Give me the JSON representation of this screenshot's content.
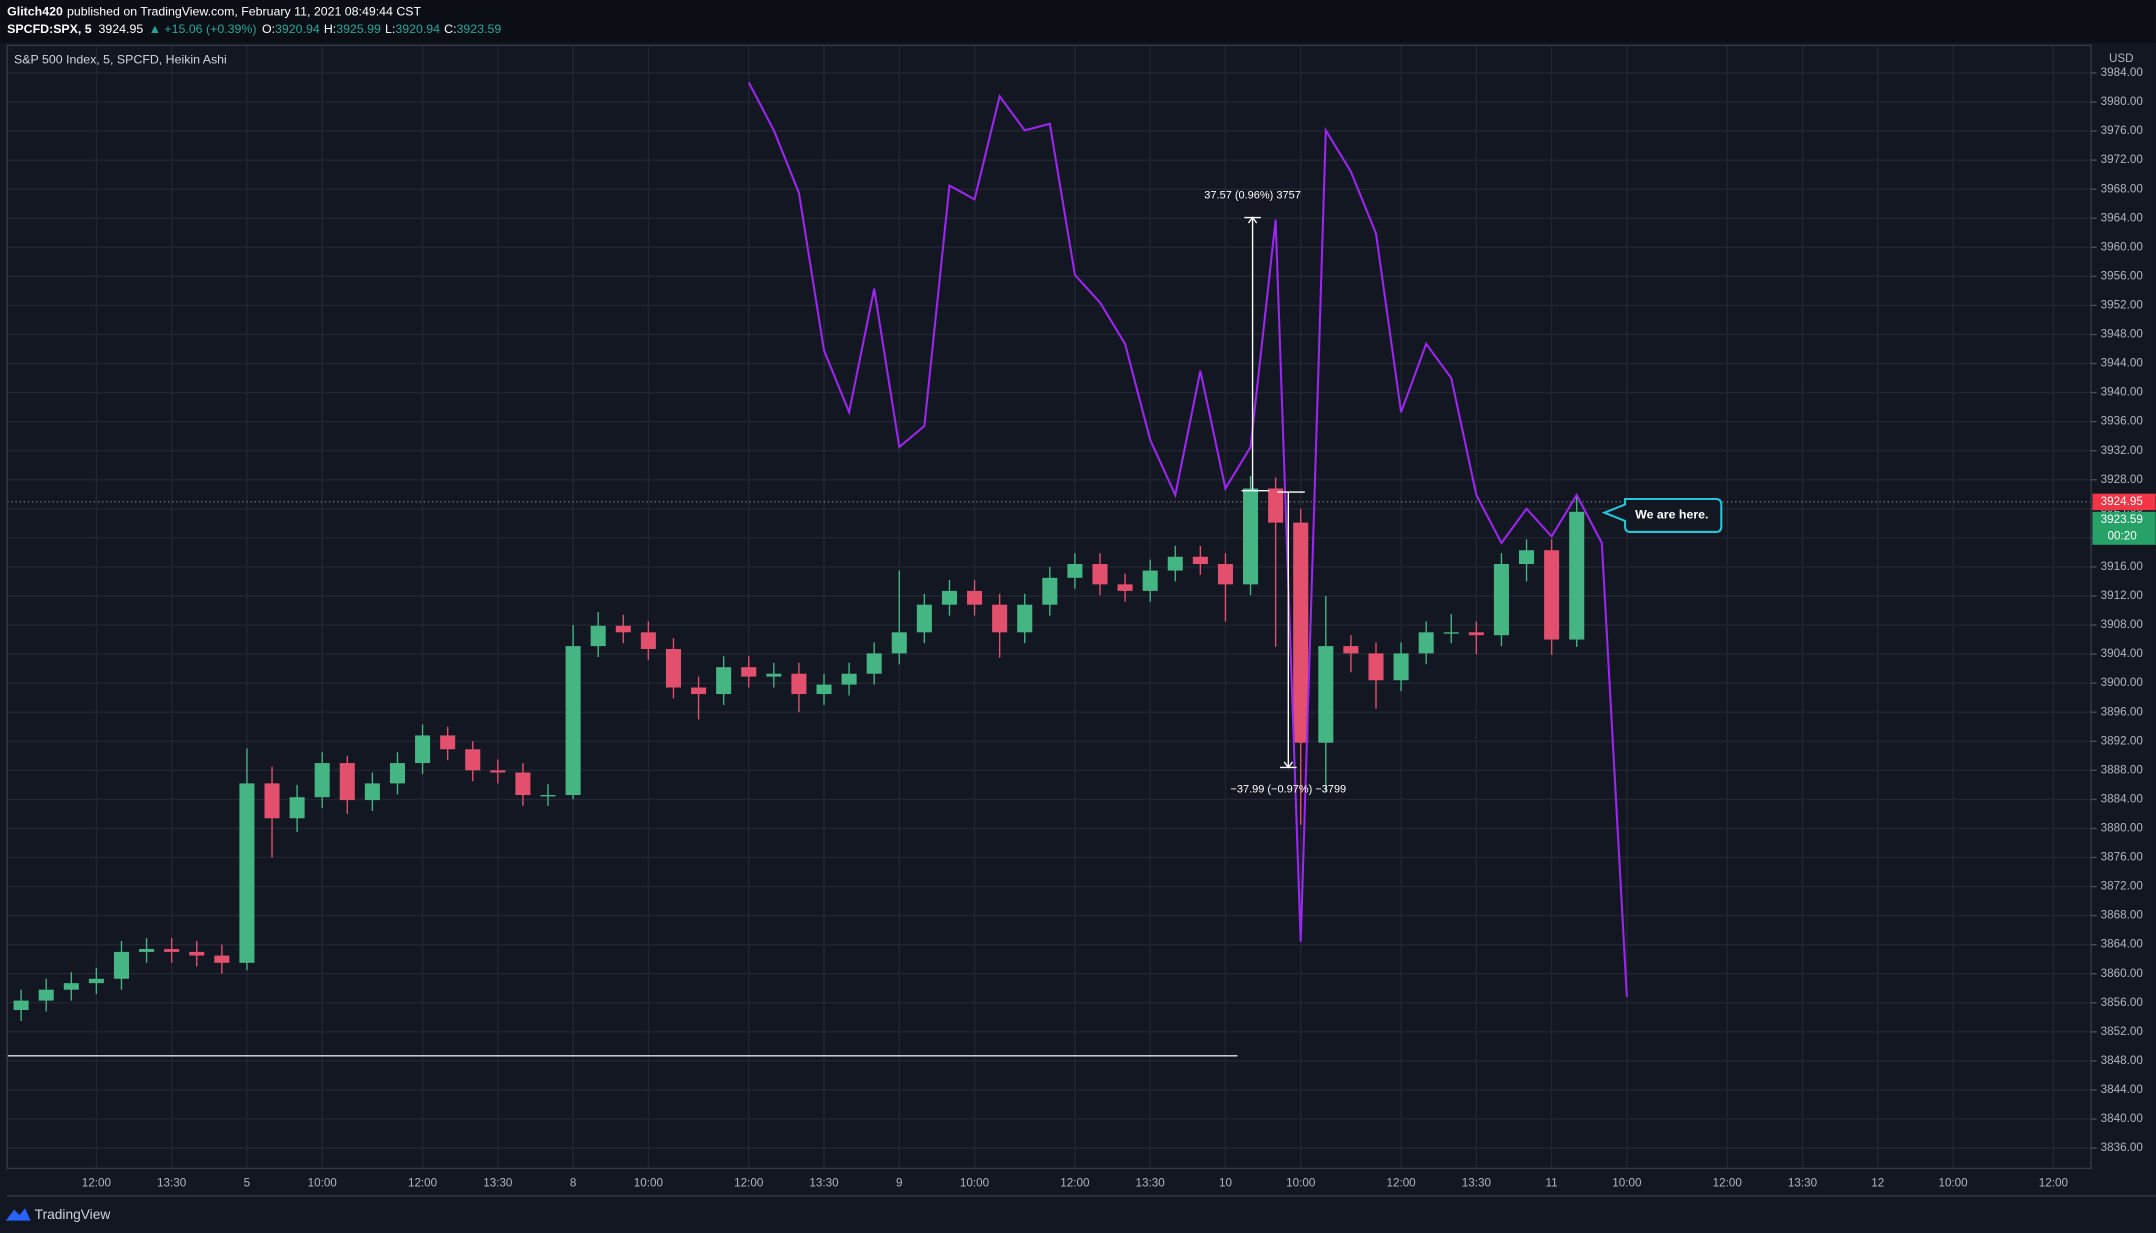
{
  "header": {
    "user": "Glitch420",
    "published": "published on TradingView.com, February 11, 2021 08:49:44 CST",
    "symbol": "SPCFD:SPX, 5",
    "price": 3924.95,
    "change": "▲ +15.06 (+0.39%)",
    "o_label": "O:",
    "open": 3920.94,
    "h_label": "H:",
    "l_label": "L:",
    "low": 3920.94,
    "c_label": "C:"
  },
  "chart_data": {
    "type": "candlestick",
    "title": "S&P 500 Index, 5, SPCFD, Heikin Ashi",
    "currency": "USD",
    "categories": [
      null,
      null,
      null,
      "12:00",
      null,
      null,
      "13:30",
      null,
      null,
      "5",
      null,
      null,
      "10:00",
      null,
      null,
      null,
      "12:00",
      null,
      null,
      "13:30",
      null,
      null,
      "8",
      null,
      null,
      "10:00",
      null,
      null,
      null,
      "12:00",
      null,
      null,
      "13:30",
      null,
      null,
      "9",
      null,
      null,
      "10:00",
      null,
      null,
      null,
      "12:00",
      null,
      null,
      "13:30",
      null,
      null,
      "10",
      null,
      null,
      "10:00",
      null,
      null,
      null,
      "12:00",
      null,
      null,
      "13:30",
      null,
      null,
      "11",
      null,
      null,
      "10:00",
      null,
      null,
      null,
      "12:00",
      null,
      null,
      "13:30",
      null,
      null,
      "12",
      null,
      null,
      "10:00",
      null,
      null,
      null,
      "12:00",
      null
    ],
    "open": [
      3855.0,
      3856.3,
      3857.8,
      3858.7,
      3859.3,
      3863.0,
      3863.4,
      3863.0,
      3862.5,
      3861.5,
      3886.2,
      3881.4,
      3884.3,
      3889.0,
      3883.9,
      3886.2,
      3889.0,
      3892.8,
      3890.9,
      3888.0,
      3887.7,
      3884.6,
      3884.6,
      3905.1,
      3907.9,
      3907.0,
      3904.7,
      3899.4,
      3898.5,
      3902.2,
      3900.9,
      3901.3,
      3898.5,
      3899.8,
      3901.3,
      3904.1,
      3907.0,
      3910.8,
      3912.7,
      3910.8,
      3907.0,
      3910.8,
      3914.5,
      3916.4,
      3913.6,
      3912.7,
      3915.5,
      3917.4,
      3916.4,
      3913.6,
      3926.8,
      3922.1,
      3891.8,
      3905.1,
      3904.1,
      3900.4,
      3904.1,
      3907.0,
      3907.0,
      3906.6,
      3916.4,
      3918.3,
      3906.0,
      null,
      null,
      null,
      null,
      null,
      null,
      null,
      null,
      null,
      null,
      null,
      null,
      null,
      null,
      null,
      null,
      null,
      null,
      null,
      null
    ],
    "high": [
      3857.8,
      3859.3,
      3860.2,
      3860.8,
      3864.5,
      3864.9,
      3864.9,
      3864.5,
      3864.0,
      3891.0,
      3888.5,
      3886.0,
      3890.5,
      3890.0,
      3887.7,
      3890.5,
      3894.3,
      3894.0,
      3892.0,
      3889.5,
      3889.0,
      3886.1,
      3908.0,
      3909.8,
      3909.4,
      3908.5,
      3906.2,
      3900.9,
      3903.7,
      3903.7,
      3902.8,
      3902.8,
      3901.3,
      3902.8,
      3905.6,
      3915.5,
      3912.3,
      3914.2,
      3914.2,
      3912.3,
      3912.3,
      3916.0,
      3917.9,
      3917.9,
      3915.1,
      3917.0,
      3918.9,
      3918.9,
      3917.9,
      3928.5,
      3928.3,
      3924.0,
      3912.0,
      3906.6,
      3905.6,
      3905.6,
      3908.5,
      3909.5,
      3908.5,
      3917.9,
      3919.8,
      3919.8,
      3925.99,
      null,
      null,
      null,
      null,
      null,
      null,
      null,
      null,
      null,
      null,
      null,
      null,
      null,
      null,
      null,
      null,
      null,
      null,
      null,
      null
    ],
    "low": [
      3853.5,
      3854.8,
      3856.3,
      3857.2,
      3857.8,
      3861.5,
      3861.5,
      3861.0,
      3860.0,
      3860.5,
      3876.0,
      3879.5,
      3882.8,
      3882.0,
      3882.4,
      3884.7,
      3887.5,
      3889.4,
      3886.5,
      3886.2,
      3883.1,
      3883.1,
      3884.0,
      3903.6,
      3905.5,
      3903.2,
      3897.9,
      3895.0,
      3897.0,
      3899.4,
      3899.4,
      3896.0,
      3897.0,
      3898.3,
      3899.8,
      3902.6,
      3905.5,
      3909.3,
      3909.3,
      3903.5,
      3905.5,
      3909.3,
      3913.0,
      3912.1,
      3911.2,
      3911.2,
      3914.0,
      3914.9,
      3908.5,
      3912.1,
      3905.0,
      3880.5,
      3885.0,
      3901.5,
      3896.5,
      3898.9,
      3902.6,
      3905.5,
      3904.0,
      3905.1,
      3914.0,
      3903.9,
      3905.0,
      null,
      null,
      null,
      null,
      null,
      null,
      null,
      null,
      null,
      null,
      null,
      null,
      null,
      null,
      null,
      null,
      null,
      null,
      null,
      null
    ],
    "close": [
      3856.3,
      3857.8,
      3858.7,
      3859.3,
      3863.0,
      3863.4,
      3863.0,
      3862.5,
      3861.5,
      3886.2,
      3881.4,
      3884.3,
      3889.0,
      3883.9,
      3886.2,
      3889.0,
      3892.8,
      3890.9,
      3888.0,
      3887.7,
      3884.6,
      3884.6,
      3905.1,
      3907.9,
      3907.0,
      3904.7,
      3899.4,
      3898.5,
      3902.2,
      3900.9,
      3901.3,
      3898.5,
      3899.8,
      3901.3,
      3904.1,
      3907.0,
      3910.8,
      3912.7,
      3910.8,
      3907.0,
      3910.8,
      3914.5,
      3916.4,
      3913.6,
      3912.7,
      3915.5,
      3917.4,
      3916.4,
      3913.6,
      3926.8,
      3922.1,
      3891.8,
      3905.1,
      3904.1,
      3900.4,
      3904.1,
      3907.0,
      3907.0,
      3906.6,
      3916.4,
      3918.3,
      3906.0,
      3923.59,
      null,
      null,
      null,
      null,
      null,
      null,
      null,
      null,
      null,
      null,
      null,
      null,
      null,
      null,
      null,
      null,
      null,
      null,
      null,
      null
    ],
    "up_color": "#45b584",
    "down_color": "#e2506e",
    "line_overlay": {
      "type": "line",
      "color": "#9b27f0",
      "values": [
        null,
        null,
        null,
        null,
        null,
        null,
        null,
        null,
        null,
        null,
        null,
        null,
        null,
        null,
        null,
        null,
        null,
        null,
        null,
        null,
        null,
        null,
        null,
        null,
        null,
        null,
        null,
        null,
        null,
        3982.7,
        3976.1,
        3967.5,
        3945.8,
        3937.3,
        3954.3,
        3932.5,
        3935.4,
        3968.5,
        3966.6,
        3980.8,
        3976.1,
        3977.0,
        3956.2,
        3952.4,
        3946.7,
        3933.5,
        3925.9,
        3943.0,
        3926.8,
        3932.5,
        3963.8,
        3864.4,
        3976.1,
        3970.4,
        3961.9,
        3937.3,
        3946.7,
        3942.0,
        3925.9,
        3919.3,
        3924.0,
        3920.2,
        3925.9,
        3919.3,
        3856.8,
        null,
        null,
        null,
        null,
        null,
        null,
        null,
        null,
        null,
        null,
        null,
        null,
        null,
        null,
        null,
        null,
        null,
        null
      ]
    },
    "drawn_line": 3848.7,
    "measures": [
      {
        "from": 3926.5,
        "to": 3964.1,
        "label": "37.57 (0.96%) 3757"
      },
      {
        "from": 3926.3,
        "to": 3888.4,
        "label": "−37.99 (−0.97%) −3799"
      }
    ],
    "countdown": "00:20",
    "callout": "We are here.",
    "ylim": [
      3833.2,
      3987.8
    ],
    "yticks": [
      {
        "value": 3836,
        "label": "3836.00"
      },
      {
        "value": 3840,
        "label": "3840.00"
      },
      {
        "value": 3844,
        "label": "3844.00"
      },
      {
        "value": 3848,
        "label": "3848.00"
      },
      {
        "value": 3852,
        "label": "3852.00"
      },
      {
        "value": 3856,
        "label": "3856.00"
      },
      {
        "value": 3860,
        "label": "3860.00"
      },
      {
        "value": 3864,
        "label": "3864.00"
      },
      {
        "value": 3868,
        "label": "3868.00"
      },
      {
        "value": 3872,
        "label": "3872.00"
      },
      {
        "value": 3876,
        "label": "3876.00"
      },
      {
        "value": 3880,
        "label": "3880.00"
      },
      {
        "value": 3884,
        "label": "3884.00"
      },
      {
        "value": 3888,
        "label": "3888.00"
      },
      {
        "value": 3892,
        "label": "3892.00"
      },
      {
        "value": 3896,
        "label": "3896.00"
      },
      {
        "value": 3900,
        "label": "3900.00"
      },
      {
        "value": 3904,
        "label": "3904.00"
      },
      {
        "value": 3908,
        "label": "3908.00"
      },
      {
        "value": 3912,
        "label": "3912.00"
      },
      {
        "value": 3916,
        "label": "3916.00"
      },
      {
        "value": 3920,
        "label": "3920.00"
      },
      {
        "value": 3924,
        "label": "3924.00"
      },
      {
        "value": 3928,
        "label": "3928.00"
      },
      {
        "value": 3932,
        "label": "3932.00"
      },
      {
        "value": 3936,
        "label": "3936.00"
      },
      {
        "value": 3940,
        "label": "3940.00"
      },
      {
        "value": 3944,
        "label": "3944.00"
      },
      {
        "value": 3948,
        "label": "3948.00"
      },
      {
        "value": 3952,
        "label": "3952.00"
      },
      {
        "value": 3956,
        "label": "3956.00"
      },
      {
        "value": 3960,
        "label": "3960.00"
      },
      {
        "value": 3964,
        "label": "3964.00"
      },
      {
        "value": 3968,
        "label": "3968.00"
      },
      {
        "value": 3972,
        "label": "3972.00"
      },
      {
        "value": 3976,
        "label": "3976.00"
      },
      {
        "value": 3980,
        "label": "3980.00"
      },
      {
        "value": 3984,
        "label": "3984.00"
      }
    ],
    "grid": true
  },
  "footer": {
    "brand": "TradingView"
  }
}
